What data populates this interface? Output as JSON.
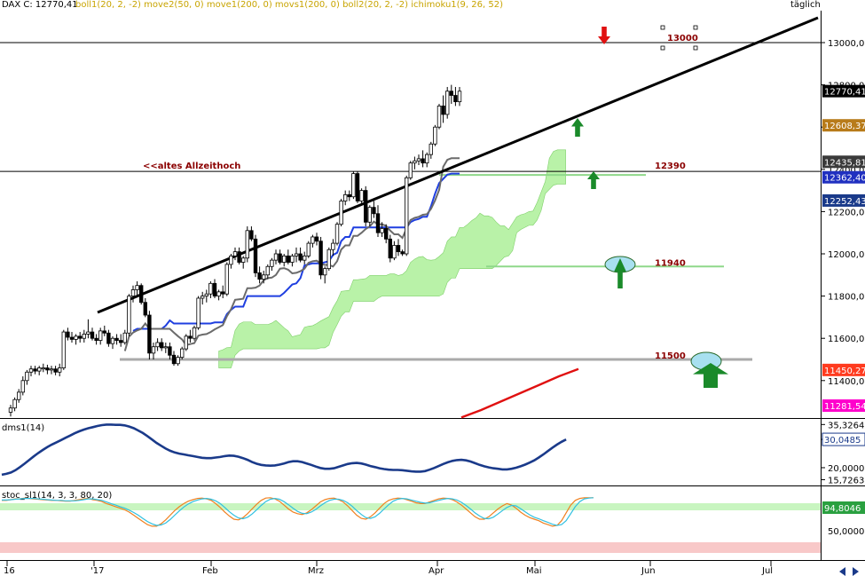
{
  "header": {
    "symbol": "DAX C: 12770,41",
    "indicators": "boll1(20, 2, -2) move2(50, 0) move1(200, 0) movs1(200, 0) boll2(20, 2, -2) ichimoku1(9, 26, 52)",
    "timeframe": "täglich"
  },
  "colors": {
    "candle_up": "#ffffff",
    "candle_down": "#000000",
    "ichimoku_cloud": "#b9f2a8",
    "tenkan": "#1f3fe0",
    "kijun": "#6b6b6b",
    "ma200": "#e01010",
    "trendline": "#000000",
    "dms": "#1a3a8a",
    "stoch_k": "#f08020",
    "stoch_d": "#30c0e0",
    "overbought_zone": "#c8f5c0",
    "oversold_zone": "#f8c8c8",
    "arrow_up": "#1a8a2a",
    "arrow_down": "#e01010",
    "badge_last": "#000000",
    "badge_bb_upper": "#b87b1a",
    "badge_tenkan": "#2030c0",
    "badge_kijun": "#1a3a8a",
    "badge_red": "#ff3b1f",
    "badge_magenta": "#ff00cc",
    "badge_grey": "#3a3a3a"
  },
  "annotations": {
    "old_high": "<<altes Allzeithoch",
    "level_13000": "13000",
    "level_12390": "12390",
    "level_11940": "11940",
    "level_11500": "11500"
  },
  "chart_data": [
    {
      "type": "candlestick",
      "ylim": [
        11200,
        13200
      ],
      "y_ticks": [
        "13000,00",
        "12800,00",
        "12600,00",
        "12400,00",
        "12200,00",
        "12000,00",
        "11800,00",
        "11600,00",
        "11400,00"
      ],
      "x_ticks": [
        "16",
        "'17",
        "Feb",
        "Mrz",
        "Apr",
        "Mai",
        "Jun",
        "Jul"
      ],
      "value_badges": [
        {
          "value": "12770,41",
          "role": "last"
        },
        {
          "value": "12608,37",
          "role": "bb_upper"
        },
        {
          "value": "12435,81",
          "role": "grey"
        },
        {
          "value": "12362,40",
          "role": "tenkan"
        },
        {
          "value": "12252,43",
          "role": "kijun"
        },
        {
          "value": "11450,27",
          "role": "red"
        },
        {
          "value": "11281,54",
          "role": "magenta"
        }
      ],
      "horizontal_levels": [
        13000,
        12390,
        11940,
        11500
      ],
      "candles": [
        [
          11250,
          11285,
          11230,
          11270
        ],
        [
          11270,
          11320,
          11255,
          11310
        ],
        [
          11310,
          11360,
          11295,
          11345
        ],
        [
          11345,
          11420,
          11330,
          11400
        ],
        [
          11400,
          11450,
          11380,
          11440
        ],
        [
          11440,
          11470,
          11420,
          11455
        ],
        [
          11455,
          11470,
          11430,
          11445
        ],
        [
          11445,
          11470,
          11425,
          11460
        ],
        [
          11460,
          11480,
          11440,
          11460
        ],
        [
          11460,
          11475,
          11430,
          11450
        ],
        [
          11450,
          11470,
          11430,
          11455
        ],
        [
          11455,
          11470,
          11425,
          11440
        ],
        [
          11440,
          11480,
          11420,
          11460
        ],
        [
          11460,
          11640,
          11450,
          11630
        ],
        [
          11630,
          11650,
          11590,
          11605
        ],
        [
          11605,
          11630,
          11580,
          11595
        ],
        [
          11595,
          11620,
          11570,
          11610
        ],
        [
          11610,
          11630,
          11580,
          11600
        ],
        [
          11600,
          11640,
          11580,
          11620
        ],
        [
          11620,
          11690,
          11600,
          11630
        ],
        [
          11630,
          11650,
          11590,
          11600
        ],
        [
          11600,
          11620,
          11570,
          11590
        ],
        [
          11590,
          11650,
          11570,
          11635
        ],
        [
          11635,
          11660,
          11610,
          11625
        ],
        [
          11625,
          11640,
          11560,
          11575
        ],
        [
          11575,
          11610,
          11550,
          11600
        ],
        [
          11600,
          11620,
          11570,
          11590
        ],
        [
          11590,
          11620,
          11560,
          11580
        ],
        [
          11580,
          11640,
          11570,
          11625
        ],
        [
          11625,
          11810,
          11610,
          11800
        ],
        [
          11800,
          11850,
          11770,
          11830
        ],
        [
          11830,
          11870,
          11800,
          11850
        ],
        [
          11850,
          11860,
          11760,
          11770
        ],
        [
          11770,
          11790,
          11700,
          11710
        ],
        [
          11710,
          11730,
          11500,
          11530
        ],
        [
          11530,
          11580,
          11500,
          11560
        ],
        [
          11560,
          11600,
          11540,
          11580
        ],
        [
          11580,
          11600,
          11540,
          11555
        ],
        [
          11555,
          11580,
          11530,
          11560
        ],
        [
          11560,
          11580,
          11500,
          11520
        ],
        [
          11520,
          11540,
          11470,
          11480
        ],
        [
          11480,
          11520,
          11470,
          11510
        ],
        [
          11510,
          11560,
          11500,
          11550
        ],
        [
          11550,
          11620,
          11540,
          11610
        ],
        [
          11610,
          11640,
          11580,
          11600
        ],
        [
          11600,
          11660,
          11590,
          11650
        ],
        [
          11650,
          11800,
          11640,
          11790
        ],
        [
          11790,
          11820,
          11760,
          11800
        ],
        [
          11800,
          11830,
          11770,
          11810
        ],
        [
          11810,
          11870,
          11790,
          11860
        ],
        [
          11860,
          11880,
          11790,
          11800
        ],
        [
          11800,
          11830,
          11780,
          11820
        ],
        [
          11820,
          11850,
          11790,
          11810
        ],
        [
          11810,
          11960,
          11800,
          11950
        ],
        [
          11950,
          12000,
          11930,
          11990
        ],
        [
          11990,
          12030,
          11970,
          12010
        ],
        [
          12010,
          12030,
          11950,
          11960
        ],
        [
          11960,
          11990,
          11930,
          11980
        ],
        [
          11980,
          12130,
          11960,
          12110
        ],
        [
          12110,
          12130,
          12060,
          12070
        ],
        [
          12070,
          12090,
          11890,
          11910
        ],
        [
          11910,
          11940,
          11860,
          11880
        ],
        [
          11880,
          11920,
          11860,
          11900
        ],
        [
          11900,
          11950,
          11880,
          11940
        ],
        [
          11940,
          11980,
          11920,
          11970
        ],
        [
          11970,
          12020,
          11950,
          12000
        ],
        [
          12000,
          12020,
          11950,
          11960
        ],
        [
          11960,
          12000,
          11940,
          11990
        ],
        [
          11990,
          12020,
          11950,
          11960
        ],
        [
          11960,
          12000,
          11940,
          11990
        ],
        [
          11990,
          12030,
          11960,
          12000
        ],
        [
          12000,
          12030,
          11960,
          11970
        ],
        [
          11970,
          12010,
          11950,
          11990
        ],
        [
          11990,
          12060,
          11980,
          12050
        ],
        [
          12050,
          12090,
          12030,
          12080
        ],
        [
          12080,
          12100,
          12040,
          12060
        ],
        [
          12060,
          12080,
          11880,
          11900
        ],
        [
          11900,
          11940,
          11860,
          11930
        ],
        [
          11930,
          12030,
          11920,
          12020
        ],
        [
          12020,
          12070,
          11990,
          12050
        ],
        [
          12050,
          12150,
          12040,
          12140
        ],
        [
          12140,
          12260,
          12130,
          12250
        ],
        [
          12250,
          12300,
          12230,
          12280
        ],
        [
          12280,
          12300,
          12250,
          12270
        ],
        [
          12270,
          12390,
          12260,
          12380
        ],
        [
          12380,
          12390,
          12240,
          12250
        ],
        [
          12250,
          12310,
          12240,
          12300
        ],
        [
          12300,
          12320,
          12130,
          12150
        ],
        [
          12150,
          12230,
          12130,
          12220
        ],
        [
          12220,
          12250,
          12170,
          12190
        ],
        [
          12190,
          12230,
          12080,
          12100
        ],
        [
          12100,
          12150,
          12080,
          12120
        ],
        [
          12120,
          12140,
          12050,
          12070
        ],
        [
          12070,
          12090,
          11960,
          11980
        ],
        [
          11980,
          12060,
          11970,
          12040
        ],
        [
          12040,
          12070,
          11990,
          12010
        ],
        [
          12010,
          12020,
          11990,
          12000
        ],
        [
          12000,
          12370,
          11990,
          12360
        ],
        [
          12360,
          12440,
          12350,
          12430
        ],
        [
          12430,
          12460,
          12400,
          12440
        ],
        [
          12440,
          12470,
          12420,
          12450
        ],
        [
          12450,
          12490,
          12410,
          12430
        ],
        [
          12430,
          12480,
          12410,
          12470
        ],
        [
          12470,
          12530,
          12450,
          12520
        ],
        [
          12520,
          12610,
          12510,
          12600
        ],
        [
          12600,
          12710,
          12590,
          12700
        ],
        [
          12700,
          12750,
          12620,
          12660
        ],
        [
          12660,
          12790,
          12640,
          12770
        ],
        [
          12770,
          12800,
          12710,
          12750
        ],
        [
          12750,
          12790,
          12700,
          12720
        ],
        [
          12720,
          12790,
          12700,
          12770
        ]
      ]
    },
    {
      "type": "line",
      "name": "dms1(14)",
      "ylim": [
        14,
        37
      ],
      "y_ticks": [
        "35,3264",
        "30,0485",
        "20,0000",
        "15,7263"
      ],
      "values": [
        17.5,
        17.8,
        18.3,
        19.1,
        20.2,
        21.4,
        22.7,
        24,
        25.2,
        26.3,
        27.3,
        28.2,
        29,
        29.8,
        30.6,
        31.4,
        32.2,
        32.9,
        33.5,
        34,
        34.4,
        34.8,
        35.1,
        35.3,
        35.3,
        35.2,
        35.2,
        35,
        34.6,
        34,
        33.2,
        32.3,
        31.2,
        30,
        28.8,
        27.8,
        26.8,
        26,
        25.4,
        25,
        24.7,
        24.4,
        24.1,
        23.8,
        23.5,
        23.4,
        23.4,
        23.6,
        23.8,
        24.1,
        24.3,
        24.2,
        23.9,
        23.4,
        22.8,
        22,
        21.4,
        21,
        20.8,
        20.7,
        20.8,
        21.1,
        21.5,
        22,
        22.3,
        22.3,
        22,
        21.5,
        21,
        20.4,
        19.9,
        19.6,
        19.6,
        19.8,
        20.3,
        20.8,
        21.3,
        21.6,
        21.7,
        21.5,
        21.1,
        20.6,
        20.2,
        19.8,
        19.5,
        19.3,
        19.2,
        19.2,
        19.1,
        18.9,
        18.7,
        18.6,
        18.6,
        18.8,
        19.3,
        19.9,
        20.6,
        21.3,
        21.9,
        22.4,
        22.7,
        22.8,
        22.6,
        22.2,
        21.6,
        21,
        20.5,
        20.1,
        19.8,
        19.6,
        19.4,
        19.4,
        19.6,
        20,
        20.5,
        21.1,
        21.8,
        22.6,
        23.6,
        24.7,
        25.9,
        27.1,
        28.2,
        29.2,
        30
      ]
    },
    {
      "type": "line",
      "name": "stoc_sl1(14, 3, 3, 80, 20)",
      "ylim": [
        0,
        100
      ],
      "y_ticks": [
        "94,8046",
        "50,0000"
      ],
      "zones": {
        "overbought": 80,
        "oversold": 20
      },
      "series": [
        {
          "name": "k",
          "values": [
            88,
            88,
            90,
            92,
            92,
            94,
            93,
            92,
            91,
            90,
            89,
            88,
            88,
            87,
            86,
            86,
            88,
            90,
            92,
            93,
            90,
            88,
            85,
            80,
            76,
            72,
            68,
            64,
            58,
            50,
            42,
            34,
            26,
            22,
            22,
            28,
            38,
            50,
            62,
            72,
            80,
            86,
            90,
            93,
            94,
            92,
            88,
            80,
            70,
            58,
            48,
            40,
            38,
            44,
            54,
            66,
            78,
            88,
            94,
            95,
            92,
            86,
            76,
            66,
            58,
            54,
            52,
            56,
            64,
            74,
            84,
            90,
            93,
            94,
            90,
            84,
            74,
            62,
            50,
            42,
            40,
            46,
            56,
            68,
            80,
            88,
            92,
            94,
            93,
            90,
            86,
            82,
            80,
            80,
            84,
            88,
            92,
            94,
            93,
            90,
            84,
            76,
            66,
            56,
            46,
            40,
            40,
            46,
            56,
            66,
            74,
            80,
            76,
            68,
            58,
            50,
            44,
            40,
            36,
            30,
            26,
            22,
            24,
            36,
            56,
            76,
            88,
            93,
            95,
            95,
            95
          ]
        },
        {
          "name": "d",
          "values": [
            89,
            89,
            90,
            91,
            92,
            93,
            93,
            93,
            92,
            91,
            90,
            89,
            88,
            88,
            87,
            87,
            87,
            88,
            90,
            92,
            92,
            90,
            88,
            84,
            80,
            76,
            72,
            68,
            63,
            57,
            50,
            42,
            34,
            28,
            24,
            25,
            30,
            39,
            50,
            61,
            71,
            79,
            85,
            89,
            92,
            93,
            91,
            87,
            80,
            70,
            59,
            50,
            43,
            41,
            45,
            53,
            64,
            75,
            85,
            91,
            93,
            91,
            85,
            77,
            68,
            60,
            55,
            54,
            58,
            65,
            74,
            82,
            88,
            91,
            91,
            88,
            82,
            73,
            62,
            52,
            44,
            42,
            46,
            55,
            66,
            77,
            86,
            91,
            93,
            92,
            89,
            86,
            83,
            81,
            82,
            85,
            88,
            91,
            93,
            92,
            89,
            83,
            75,
            66,
            56,
            48,
            42,
            41,
            45,
            53,
            62,
            70,
            75,
            74,
            67,
            59,
            51,
            45,
            41,
            36,
            32,
            27,
            24,
            26,
            36,
            54,
            72,
            85,
            92,
            94,
            95
          ]
        }
      ]
    }
  ]
}
